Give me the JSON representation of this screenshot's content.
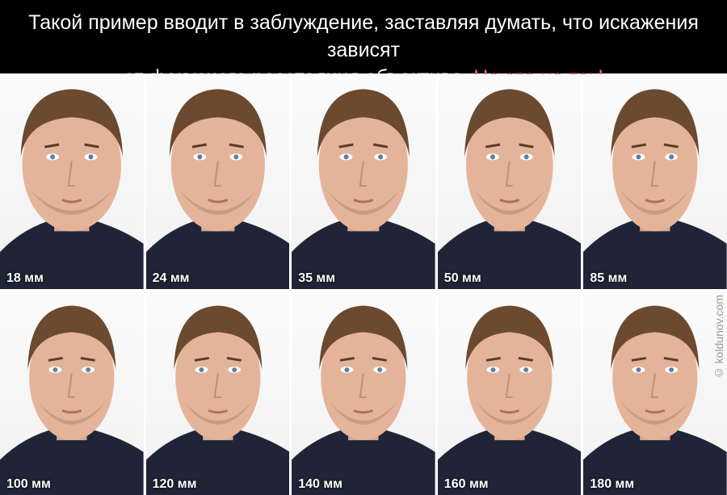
{
  "header": {
    "line1": "Такой пример вводит в заблуждение, заставляя думать, что искажения зависят",
    "line2_start": "от фокусного расстояния объектива.",
    "line2_highlight": "Но это не так!",
    "highlight_color": "#f0706a"
  },
  "photos": [
    {
      "label": "18 мм",
      "face_width": 1.0
    },
    {
      "label": "24 мм",
      "face_width": 0.95
    },
    {
      "label": "35 мм",
      "face_width": 0.9
    },
    {
      "label": "50 мм",
      "face_width": 0.88
    },
    {
      "label": "85 мм",
      "face_width": 0.86
    },
    {
      "label": "100 мм",
      "face_width": 0.86
    },
    {
      "label": "120 мм",
      "face_width": 0.86
    },
    {
      "label": "140 мм",
      "face_width": 0.86
    },
    {
      "label": "160 мм",
      "face_width": 0.86
    },
    {
      "label": "180 мм",
      "face_width": 0.86
    }
  ],
  "watermark": "© koldunov.com"
}
